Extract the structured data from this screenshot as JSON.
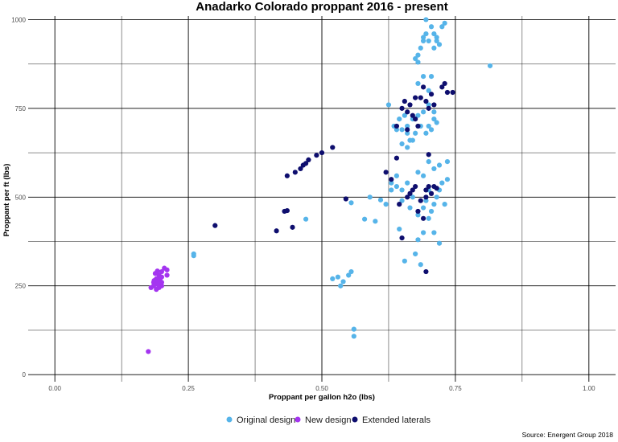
{
  "chart_data": {
    "type": "scatter",
    "title": "Anadarko Colorado proppant 2016 - present",
    "xlabel": "Proppant per gallon h2o (lbs)",
    "ylabel": "Proppant per ft (lbs)",
    "source": "Source: Energent Group 2018",
    "xlim": [
      -0.05,
      1.05
    ],
    "ylim": [
      -20,
      1010
    ],
    "x_ticks": [
      0,
      0.25,
      0.5,
      0.75,
      1
    ],
    "x_tick_labels": [
      "0.00",
      "0.25",
      "0.50",
      "0.75",
      "1.00"
    ],
    "y_ticks": [
      0,
      250,
      500,
      750,
      1000
    ],
    "y_tick_labels": [
      "0",
      "250",
      "500",
      "750",
      "1000"
    ],
    "grid": true,
    "legend_position": "bottom",
    "series": [
      {
        "name": "Original design",
        "color": "#56B4E9",
        "points": [
          [
            0.26,
            340
          ],
          [
            0.26,
            335
          ],
          [
            0.47,
            438
          ],
          [
            0.555,
            484
          ],
          [
            0.56,
            128
          ],
          [
            0.56,
            108
          ],
          [
            0.52,
            270
          ],
          [
            0.53,
            275
          ],
          [
            0.535,
            250
          ],
          [
            0.54,
            262
          ],
          [
            0.55,
            280
          ],
          [
            0.555,
            290
          ],
          [
            0.58,
            438
          ],
          [
            0.59,
            500
          ],
          [
            0.6,
            432
          ],
          [
            0.61,
            492
          ],
          [
            0.62,
            480
          ],
          [
            0.625,
            760
          ],
          [
            0.63,
            520
          ],
          [
            0.635,
            700
          ],
          [
            0.64,
            530
          ],
          [
            0.645,
            410
          ],
          [
            0.65,
            490
          ],
          [
            0.65,
            690
          ],
          [
            0.655,
            320
          ],
          [
            0.66,
            680
          ],
          [
            0.665,
            470
          ],
          [
            0.67,
            500
          ],
          [
            0.67,
            660
          ],
          [
            0.675,
            340
          ],
          [
            0.68,
            380
          ],
          [
            0.68,
            450
          ],
          [
            0.685,
            310
          ],
          [
            0.69,
            400
          ],
          [
            0.69,
            470
          ],
          [
            0.695,
            490
          ],
          [
            0.7,
            520
          ],
          [
            0.7,
            440
          ],
          [
            0.705,
            460
          ],
          [
            0.71,
            400
          ],
          [
            0.71,
            480
          ],
          [
            0.715,
            500
          ],
          [
            0.72,
            370
          ],
          [
            0.72,
            520
          ],
          [
            0.725,
            540
          ],
          [
            0.73,
            480
          ],
          [
            0.735,
            550
          ],
          [
            0.735,
            600
          ],
          [
            0.72,
            590
          ],
          [
            0.71,
            580
          ],
          [
            0.7,
            600
          ],
          [
            0.69,
            560
          ],
          [
            0.68,
            570
          ],
          [
            0.66,
            540
          ],
          [
            0.65,
            520
          ],
          [
            0.64,
            560
          ],
          [
            0.63,
            540
          ],
          [
            0.66,
            700
          ],
          [
            0.67,
            720
          ],
          [
            0.68,
            730
          ],
          [
            0.69,
            740
          ],
          [
            0.7,
            700
          ],
          [
            0.7,
            760
          ],
          [
            0.71,
            740
          ],
          [
            0.71,
            720
          ],
          [
            0.715,
            710
          ],
          [
            0.705,
            690
          ],
          [
            0.695,
            680
          ],
          [
            0.685,
            700
          ],
          [
            0.675,
            680
          ],
          [
            0.665,
            660
          ],
          [
            0.66,
            640
          ],
          [
            0.65,
            650
          ],
          [
            0.64,
            690
          ],
          [
            0.645,
            720
          ],
          [
            0.655,
            730
          ],
          [
            0.68,
            820
          ],
          [
            0.69,
            840
          ],
          [
            0.7,
            800
          ],
          [
            0.705,
            840
          ],
          [
            0.675,
            890
          ],
          [
            0.68,
            900
          ],
          [
            0.69,
            950
          ],
          [
            0.695,
            960
          ],
          [
            0.7,
            940
          ],
          [
            0.705,
            980
          ],
          [
            0.71,
            960
          ],
          [
            0.715,
            950
          ],
          [
            0.72,
            930
          ],
          [
            0.725,
            980
          ],
          [
            0.73,
            990
          ],
          [
            0.695,
            1000
          ],
          [
            0.69,
            940
          ],
          [
            0.685,
            920
          ],
          [
            0.71,
            920
          ],
          [
            0.715,
            940
          ],
          [
            0.68,
            880
          ],
          [
            0.815,
            870
          ]
        ]
      },
      {
        "name": "New design",
        "color": "#A435F0",
        "points": [
          [
            0.175,
            65
          ],
          [
            0.18,
            245
          ],
          [
            0.185,
            260
          ],
          [
            0.185,
            250
          ],
          [
            0.19,
            270
          ],
          [
            0.19,
            255
          ],
          [
            0.19,
            240
          ],
          [
            0.195,
            280
          ],
          [
            0.195,
            265
          ],
          [
            0.195,
            250
          ],
          [
            0.195,
            245
          ],
          [
            0.2,
            290
          ],
          [
            0.2,
            275
          ],
          [
            0.2,
            260
          ],
          [
            0.2,
            250
          ],
          [
            0.205,
            300
          ],
          [
            0.21,
            295
          ],
          [
            0.21,
            280
          ],
          [
            0.188,
            285
          ],
          [
            0.192,
            292
          ],
          [
            0.198,
            255
          ],
          [
            0.186,
            265
          ],
          [
            0.193,
            262
          ],
          [
            0.197,
            270
          ],
          [
            0.199,
            258
          ]
        ]
      },
      {
        "name": "Extended laterals",
        "color": "#0E0E6E",
        "points": [
          [
            0.3,
            420
          ],
          [
            0.415,
            405
          ],
          [
            0.43,
            460
          ],
          [
            0.435,
            462
          ],
          [
            0.445,
            415
          ],
          [
            0.435,
            560
          ],
          [
            0.45,
            570
          ],
          [
            0.46,
            580
          ],
          [
            0.465,
            590
          ],
          [
            0.47,
            595
          ],
          [
            0.475,
            605
          ],
          [
            0.49,
            618
          ],
          [
            0.5,
            625
          ],
          [
            0.52,
            640
          ],
          [
            0.545,
            495
          ],
          [
            0.62,
            570
          ],
          [
            0.63,
            550
          ],
          [
            0.64,
            610
          ],
          [
            0.645,
            480
          ],
          [
            0.65,
            385
          ],
          [
            0.66,
            500
          ],
          [
            0.665,
            510
          ],
          [
            0.67,
            520
          ],
          [
            0.675,
            530
          ],
          [
            0.68,
            460
          ],
          [
            0.685,
            490
          ],
          [
            0.69,
            440
          ],
          [
            0.695,
            520
          ],
          [
            0.695,
            500
          ],
          [
            0.7,
            530
          ],
          [
            0.705,
            510
          ],
          [
            0.71,
            530
          ],
          [
            0.715,
            525
          ],
          [
            0.695,
            290
          ],
          [
            0.65,
            750
          ],
          [
            0.655,
            770
          ],
          [
            0.66,
            740
          ],
          [
            0.665,
            760
          ],
          [
            0.67,
            730
          ],
          [
            0.675,
            780
          ],
          [
            0.68,
            700
          ],
          [
            0.685,
            780
          ],
          [
            0.69,
            810
          ],
          [
            0.695,
            770
          ],
          [
            0.7,
            750
          ],
          [
            0.705,
            790
          ],
          [
            0.71,
            760
          ],
          [
            0.725,
            810
          ],
          [
            0.73,
            820
          ],
          [
            0.735,
            795
          ],
          [
            0.745,
            795
          ],
          [
            0.64,
            700
          ],
          [
            0.66,
            690
          ],
          [
            0.675,
            720
          ],
          [
            0.7,
            620
          ]
        ]
      }
    ]
  }
}
